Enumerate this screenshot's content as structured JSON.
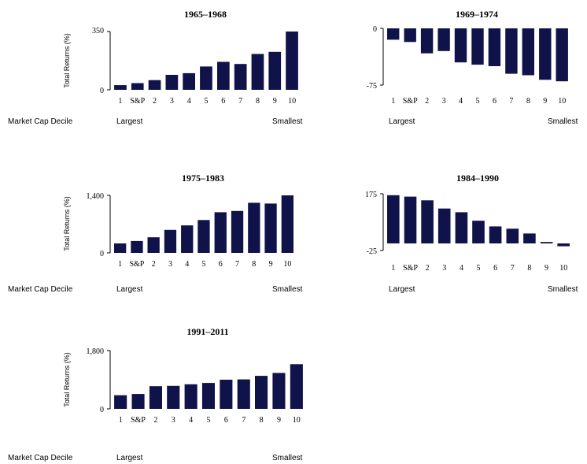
{
  "chart_data": [
    {
      "type": "bar",
      "title": "1965–1968",
      "ylabel": "Total Returns (%)",
      "xlabel": "Market Cap Decile",
      "x_left_label": "Largest",
      "x_right_label": "Smallest",
      "categories": [
        "1",
        "S&P",
        "2",
        "3",
        "4",
        "5",
        "6",
        "7",
        "8",
        "9",
        "10"
      ],
      "values": [
        28,
        40,
        58,
        90,
        100,
        140,
        168,
        155,
        215,
        228,
        350
      ],
      "ylim": [
        0,
        350
      ],
      "yticks": [
        "0",
        "350"
      ],
      "color": "#10124a"
    },
    {
      "type": "bar",
      "title": "1969–1974",
      "ylabel": "",
      "xlabel": "",
      "x_left_label": "Largest",
      "x_right_label": "Smallest",
      "categories": [
        "1",
        "S&P",
        "2",
        "3",
        "4",
        "5",
        "6",
        "7",
        "8",
        "9",
        "10"
      ],
      "values": [
        -15,
        -18,
        -33,
        -30,
        -45,
        -48,
        -50,
        -60,
        -62,
        -68,
        -70
      ],
      "ylim": [
        -75,
        0
      ],
      "yticks": [
        "0",
        "-75"
      ],
      "color": "#10124a"
    },
    {
      "type": "bar",
      "title": "1975–1983",
      "ylabel": "Total Returns (%)",
      "xlabel": "Market Cap Decile",
      "x_left_label": "Largest",
      "x_right_label": "Smallest",
      "categories": [
        "1",
        "S&P",
        "2",
        "3",
        "4",
        "5",
        "6",
        "7",
        "8",
        "9",
        "10"
      ],
      "values": [
        230,
        290,
        380,
        560,
        670,
        800,
        990,
        1020,
        1220,
        1200,
        1400
      ],
      "ylim": [
        0,
        1400
      ],
      "yticks": [
        "0",
        "1,400"
      ],
      "color": "#10124a"
    },
    {
      "type": "bar",
      "title": "1984–1990",
      "ylabel": "",
      "xlabel": "",
      "x_left_label": "Largest",
      "x_right_label": "Smallest",
      "categories": [
        "1",
        "S&P",
        "2",
        "3",
        "4",
        "5",
        "6",
        "7",
        "8",
        "9",
        "10"
      ],
      "values": [
        170,
        165,
        152,
        123,
        110,
        80,
        60,
        52,
        35,
        5,
        -10
      ],
      "ylim": [
        -25,
        175
      ],
      "yticks": [
        "175",
        "-25"
      ],
      "color": "#10124a"
    },
    {
      "type": "bar",
      "title": "1991–2011",
      "ylabel": "Total Returns (%)",
      "xlabel": "Market Cap Decile",
      "x_left_label": "Largest",
      "x_right_label": "Smallest",
      "categories": [
        "1",
        "S&P",
        "2",
        "3",
        "4",
        "5",
        "6",
        "7",
        "8",
        "9",
        "10"
      ],
      "values": [
        420,
        460,
        700,
        710,
        760,
        800,
        900,
        910,
        1020,
        1110,
        1380
      ],
      "ylim": [
        0,
        1800
      ],
      "yticks": [
        "0",
        "1,800"
      ],
      "color": "#10124a"
    }
  ]
}
